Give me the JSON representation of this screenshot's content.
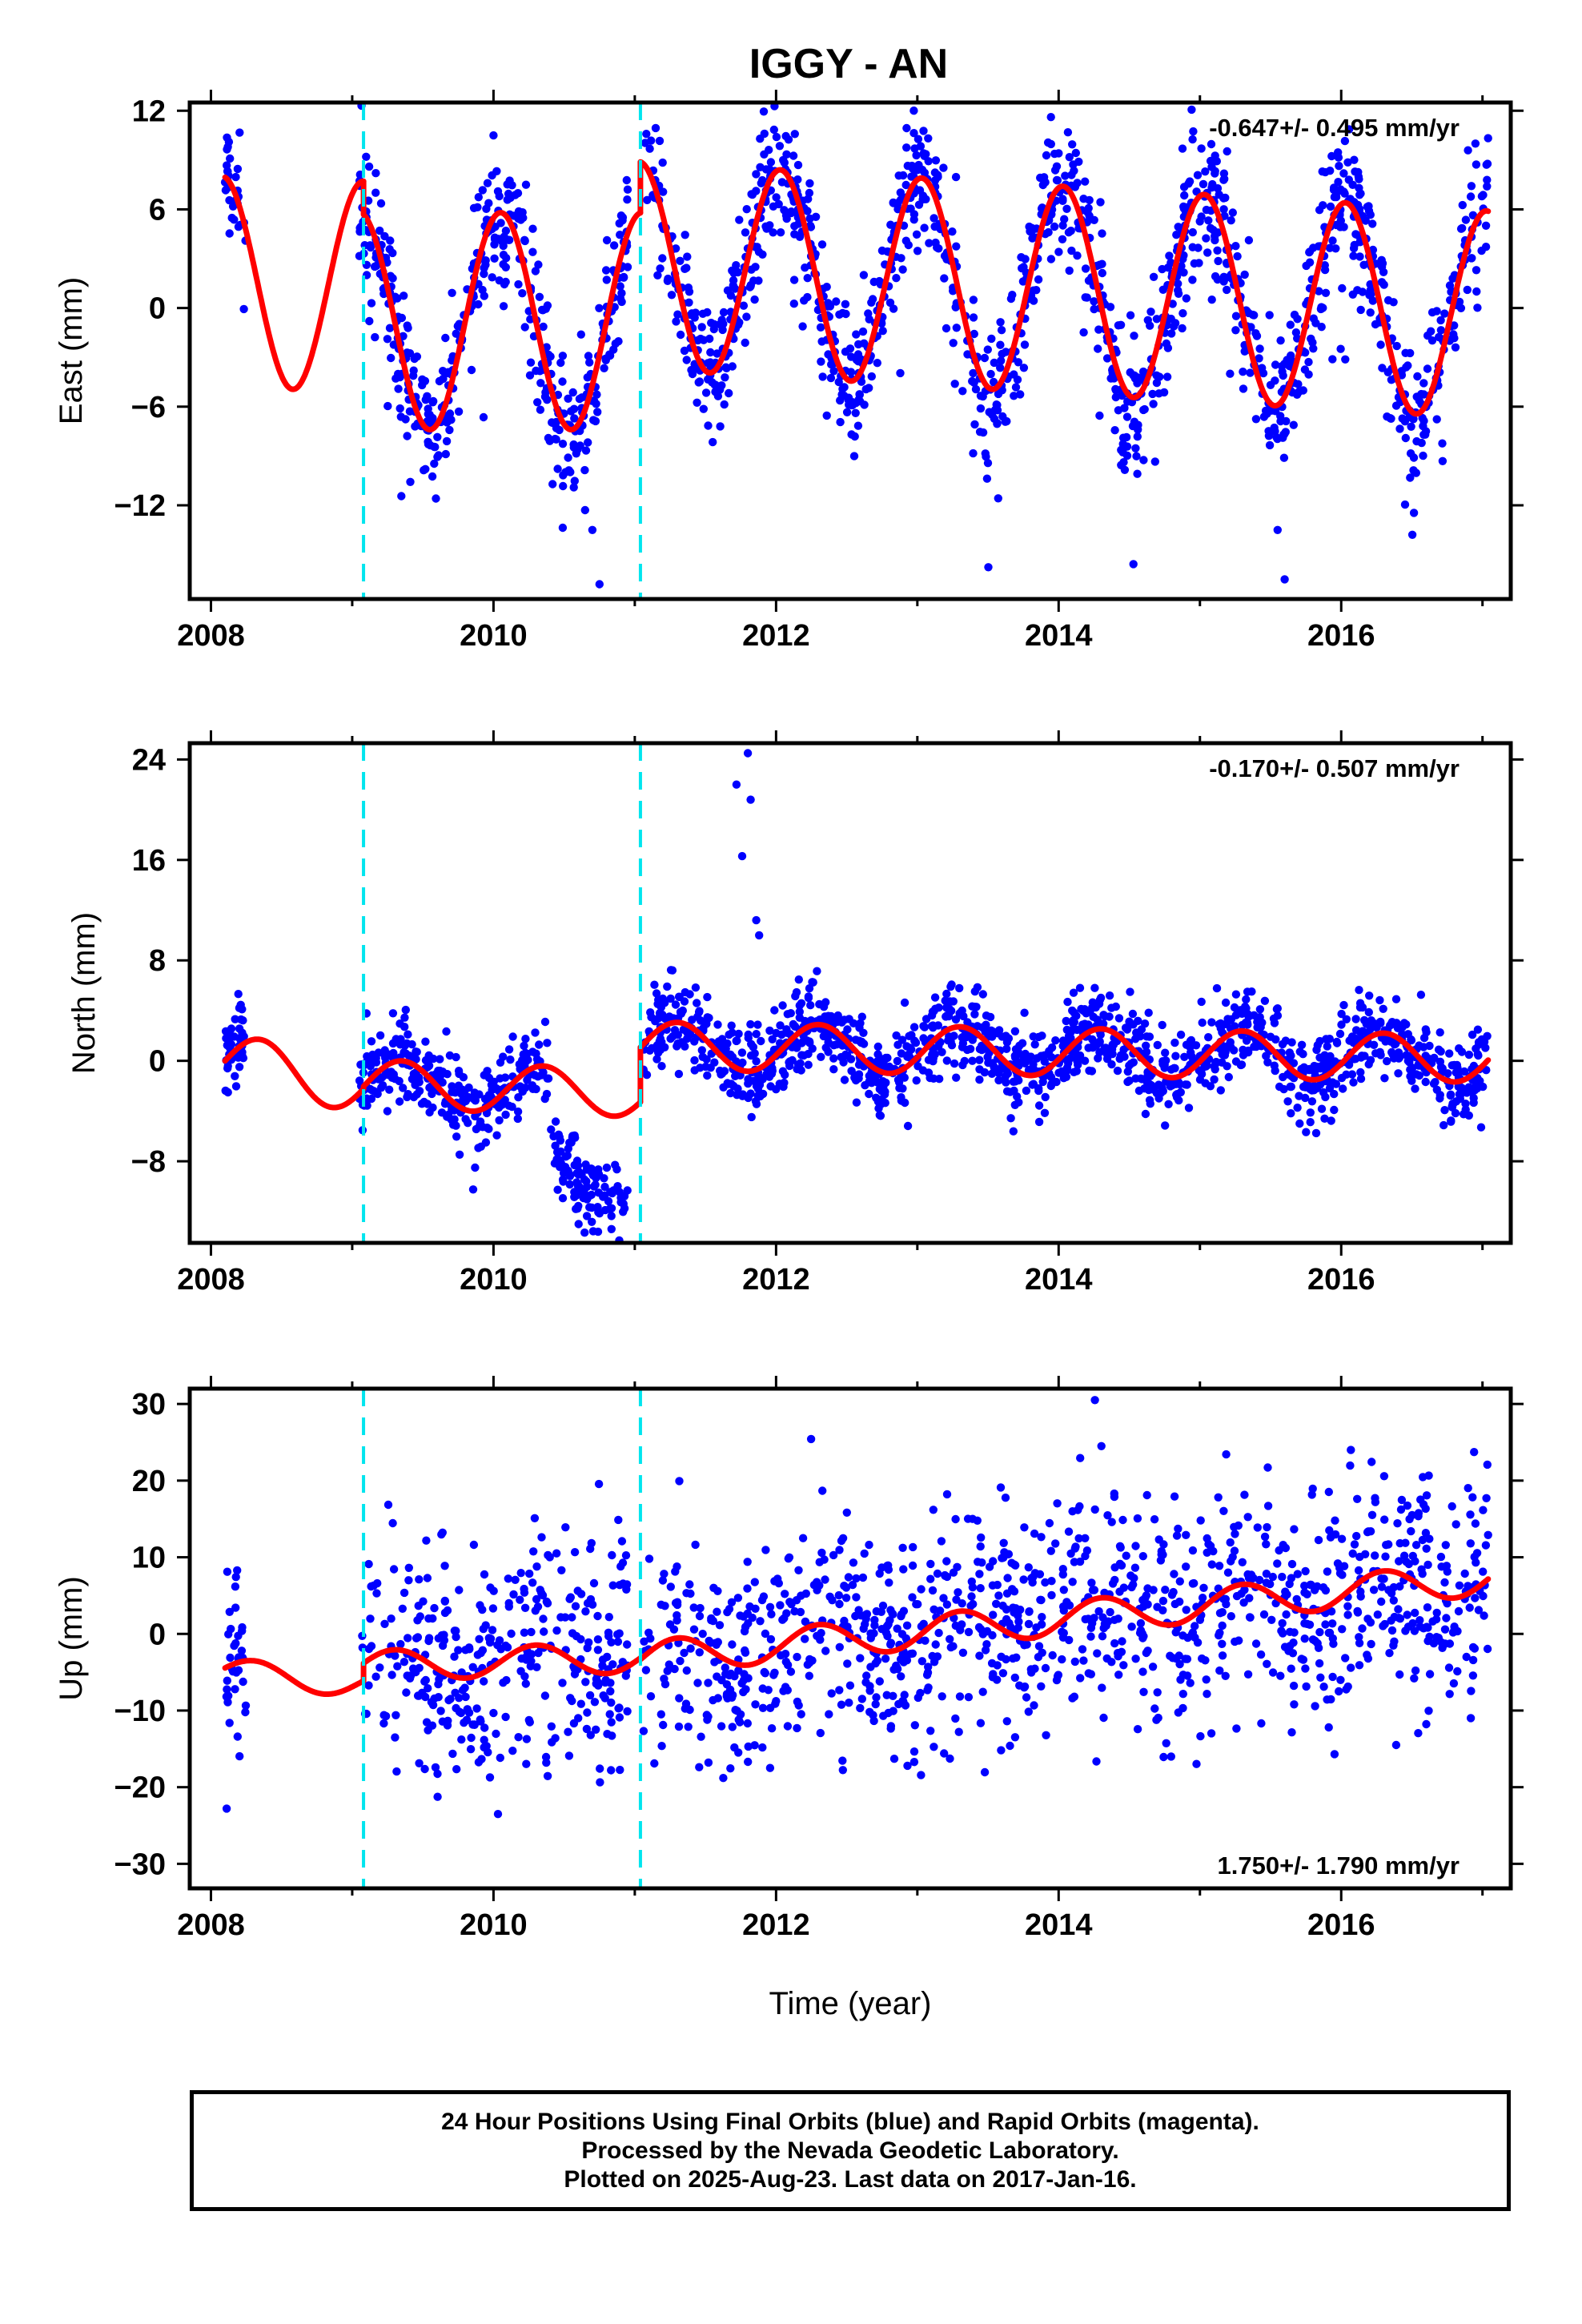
{
  "title": "IGGY - AN",
  "footer": {
    "line1": "24 Hour Positions Using Final Orbits (blue) and Rapid Orbits (magenta).",
    "line2": "Processed by the Nevada Geodetic Laboratory.",
    "line3": "Plotted on 2025-Aug-23. Last data on 2017-Jan-16."
  },
  "colors": {
    "points": "#0000ff",
    "fit": "#ff0000",
    "breaks": "#00e5ee"
  },
  "chart_data": [
    {
      "type": "scatter",
      "component": "east",
      "ylabel": "East (mm)",
      "xlabel": "",
      "xlim": [
        2007.85,
        2017.2
      ],
      "ylim": [
        -17.7,
        12.5
      ],
      "xticks": [
        2008,
        2010,
        2012,
        2014,
        2016
      ],
      "yticks": [
        12,
        6,
        0,
        -6,
        -12
      ],
      "ytick_labels": [
        "12",
        "6",
        "0",
        "−6",
        "−12"
      ],
      "rate_text": "-0.647+/- 0.495 mm/yr",
      "rate_position": "top-right",
      "breaks": [
        2009.08,
        2011.04
      ],
      "data_range": [
        2008.1,
        2017.04
      ],
      "fit_segments": [
        {
          "start": 2008.1,
          "end": 2009.08,
          "offset": 1.6,
          "trend": -0.3,
          "amplitude": 6.4,
          "phase": 2008.08
        },
        {
          "start": 2009.08,
          "end": 2011.04,
          "offset": -0.8,
          "trend": 0.0,
          "amplitude": 6.6,
          "phase": 2010.05
        },
        {
          "start": 2011.04,
          "end": 2017.04,
          "offset": 2.6,
          "trend": -0.5,
          "amplitude": 6.3,
          "phase": 2012.03
        }
      ],
      "scatter_sd": 2.2,
      "sample_points": [
        [
          2008.12,
          9.8
        ],
        [
          2009.12,
          8.6
        ],
        [
          2009.7,
          -6.8
        ],
        [
          2010.0,
          10.5
        ],
        [
          2010.7,
          -13.5
        ],
        [
          2010.75,
          -16.8
        ],
        [
          2012.05,
          9.0
        ],
        [
          2012.6,
          -4.2
        ],
        [
          2013.0,
          8.4
        ],
        [
          2013.6,
          -5.0
        ],
        [
          2014.05,
          7.5
        ],
        [
          2014.6,
          -6.2
        ],
        [
          2015.05,
          7.0
        ],
        [
          2015.55,
          -13.5
        ],
        [
          2015.6,
          -16.5
        ],
        [
          2016.05,
          6.5
        ],
        [
          2016.6,
          -7.5
        ],
        [
          2016.95,
          10.0
        ]
      ],
      "point_count": 1750
    },
    {
      "type": "scatter",
      "component": "north",
      "ylabel": "North (mm)",
      "xlabel": "",
      "xlim": [
        2007.85,
        2017.2
      ],
      "ylim": [
        -14.5,
        25.3
      ],
      "xticks": [
        2008,
        2010,
        2012,
        2014,
        2016
      ],
      "yticks": [
        24,
        16,
        8,
        0,
        -8
      ],
      "ytick_labels": [
        "24",
        "16",
        "8",
        "0",
        "−8"
      ],
      "rate_text": "-0.170+/- 0.507 mm/yr",
      "rate_position": "top-right",
      "breaks": [
        2009.08,
        2011.04
      ],
      "data_range": [
        2008.1,
        2017.04
      ],
      "fit_segments": [
        {
          "start": 2008.1,
          "end": 2009.08,
          "offset": 0.0,
          "trend": -2.0,
          "amplitude": 2.2,
          "phase": 2008.35
        },
        {
          "start": 2009.08,
          "end": 2011.04,
          "offset": -1.8,
          "trend": -0.4,
          "amplitude": 1.9,
          "phase": 2010.35
        },
        {
          "start": 2011.04,
          "end": 2017.04,
          "offset": 1.2,
          "trend": -0.17,
          "amplitude": 1.9,
          "phase": 2012.3
        }
      ],
      "scatter_sd": 1.7,
      "anomaly": {
        "start": 2010.4,
        "end": 2010.95,
        "offset": -7.0
      },
      "outliers": [
        [
          2011.72,
          22.0
        ],
        [
          2011.76,
          16.3
        ],
        [
          2011.8,
          24.5
        ],
        [
          2011.82,
          20.8
        ],
        [
          2011.86,
          11.2
        ],
        [
          2011.88,
          10.0
        ]
      ],
      "point_count": 1750
    },
    {
      "type": "scatter",
      "component": "up",
      "ylabel": "Up (mm)",
      "xlabel": "Time (year)",
      "xlim": [
        2007.85,
        2017.2
      ],
      "ylim": [
        -33.2,
        32.0
      ],
      "xticks": [
        2008,
        2010,
        2012,
        2014,
        2016
      ],
      "yticks": [
        30,
        20,
        10,
        0,
        -10,
        -20,
        -30
      ],
      "ytick_labels": [
        "30",
        "20",
        "10",
        "0",
        "−10",
        "−20",
        "−30"
      ],
      "rate_text": "1.750+/- 1.790 mm/yr",
      "rate_position": "bottom-right",
      "breaks": [
        2009.08,
        2011.04
      ],
      "data_range": [
        2008.1,
        2017.04
      ],
      "fit_segments": [
        {
          "start": 2008.1,
          "end": 2009.08,
          "offset": -5.0,
          "trend": -1.5,
          "amplitude": 1.8,
          "phase": 2008.3
        },
        {
          "start": 2009.08,
          "end": 2011.04,
          "offset": -4.2,
          "trend": 0.6,
          "amplitude": 2.0,
          "phase": 2010.3
        },
        {
          "start": 2011.04,
          "end": 2017.04,
          "offset": -3.2,
          "trend": 1.75,
          "amplitude": 2.2,
          "phase": 2012.3
        }
      ],
      "scatter_sd": 7.5,
      "point_count": 1500
    }
  ]
}
